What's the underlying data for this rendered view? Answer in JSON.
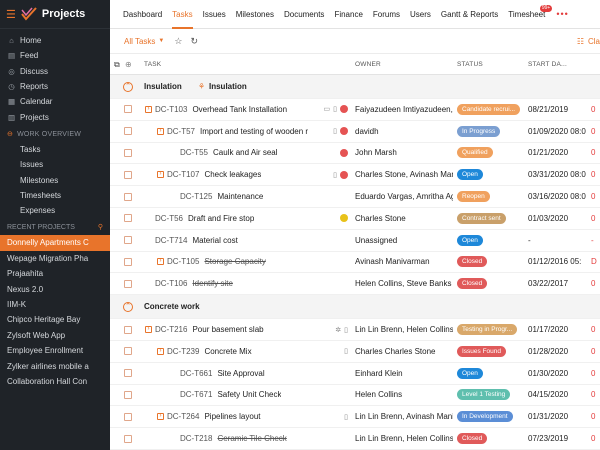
{
  "app": {
    "title": "Projects"
  },
  "sidebar": {
    "items": [
      {
        "label": "Home",
        "icon": "home-icon",
        "glyph": "⌂"
      },
      {
        "label": "Feed",
        "icon": "feed-icon",
        "glyph": "▤"
      },
      {
        "label": "Discuss",
        "icon": "discuss-icon",
        "glyph": "◎"
      },
      {
        "label": "Reports",
        "icon": "reports-icon",
        "glyph": "◷"
      },
      {
        "label": "Calendar",
        "icon": "calendar-icon",
        "glyph": "▦"
      },
      {
        "label": "Projects",
        "icon": "projects-icon",
        "glyph": "▥"
      }
    ],
    "work_overview": {
      "label": "WORK OVERVIEW",
      "items": [
        "Tasks",
        "Issues",
        "Milestones",
        "Timesheets",
        "Expenses"
      ]
    },
    "recent_projects": {
      "label": "RECENT PROJECTS",
      "items": [
        {
          "label": "Donnelly Apartments C",
          "active": true
        },
        {
          "label": "Wepage Migration Pha",
          "active": false
        },
        {
          "label": "Prajaahita",
          "active": false
        },
        {
          "label": "Nexus 2.0",
          "active": false
        },
        {
          "label": "IIM-K",
          "active": false
        },
        {
          "label": "Chipco Heritage Bay",
          "active": false
        },
        {
          "label": "Zylsoft Web App",
          "active": false
        },
        {
          "label": "Employee Enrollment",
          "active": false
        },
        {
          "label": "Zylker airlines mobile a",
          "active": false
        },
        {
          "label": "Collaboration Hall Con",
          "active": false
        }
      ]
    }
  },
  "topnav": {
    "tabs": [
      "Dashboard",
      "Tasks",
      "Issues",
      "Milestones",
      "Documents",
      "Finance",
      "Forums",
      "Users",
      "Gantt & Reports",
      "Timesheet"
    ],
    "active": "Tasks",
    "timesheet_badge": "99+",
    "more": "•••"
  },
  "toolbar": {
    "view": "All Tasks",
    "classic": "Cla"
  },
  "table": {
    "headers": {
      "task": "TASK",
      "owner": "OWNER",
      "status": "STATUS",
      "start": "START DA..."
    }
  },
  "colors": {
    "accent": "#e8742b",
    "candidate": "#f0a15e",
    "in_progress": "#7b9fd1",
    "qualified": "#f0a15e",
    "open": "#1e88d9",
    "reopen": "#f0a15e",
    "contract_sent": "#c9a06a",
    "closed": "#e05a5a",
    "testing": "#d9a86a",
    "issues_found": "#e05a5a",
    "level1": "#5fbfae",
    "in_development": "#5b8ed6"
  },
  "groups": [
    {
      "name": "Insulation",
      "sub_name": "Insulation",
      "rows": [
        {
          "indent": 0,
          "has_sub": true,
          "id": "DC-T103",
          "name": "Overhead Tank Installation",
          "icons": [
            "chat-icon",
            "doc-icon",
            "red-dot"
          ],
          "owner": "Faiyazudeen Imtiyazudeen, H",
          "status": "Candidate recrui...",
          "status_color": "#f0a15e",
          "start": "08/21/2019",
          "due": "0",
          "done": false
        },
        {
          "indent": 1,
          "has_sub": true,
          "id": "DC-T57",
          "name": "Import and testing of wooden r",
          "icons": [
            "doc-icon",
            "red-dot"
          ],
          "owner": "davidh",
          "status": "In Progress",
          "status_color": "#7b9fd1",
          "start": "01/09/2020 08:0",
          "due": "0",
          "done": false
        },
        {
          "indent": 2,
          "has_sub": false,
          "id": "DC-T55",
          "name": "Caulk and Air seal",
          "icons": [
            "red-dot"
          ],
          "owner": "John Marsh",
          "status": "Qualified",
          "status_color": "#f0a15e",
          "start": "01/21/2020",
          "due": "0",
          "done": false
        },
        {
          "indent": 1,
          "has_sub": true,
          "id": "DC-T107",
          "name": "Check leakages",
          "icons": [
            "doc-icon",
            "red-dot"
          ],
          "owner": "Charles Stone, Avinash Maniv",
          "status": "Open",
          "status_color": "#1e88d9",
          "start": "03/31/2020 08:0",
          "due": "0",
          "done": false
        },
        {
          "indent": 2,
          "has_sub": false,
          "id": "DC-T125",
          "name": "Maintenance",
          "icons": [],
          "owner": "Eduardo Vargas, Amritha Agra",
          "status": "Reopen",
          "status_color": "#f0a15e",
          "start": "03/16/2020 08:0",
          "due": "0",
          "done": false
        },
        {
          "indent": 0,
          "has_sub": false,
          "id": "DC-T56",
          "name": "Draft and Fire stop",
          "icons": [
            "yellow-dot"
          ],
          "owner": "Charles Stone",
          "status": "Contract sent",
          "status_color": "#c9a06a",
          "start": "01/03/2020",
          "due": "0",
          "done": false
        },
        {
          "indent": 0,
          "has_sub": false,
          "id": "DC-T714",
          "name": "Material cost",
          "icons": [],
          "owner": "Unassigned",
          "status": "Open",
          "status_color": "#1e88d9",
          "start": "-",
          "due": "-",
          "done": false
        },
        {
          "indent": 1,
          "has_sub": true,
          "id": "DC-T105",
          "name": "Storage Capacity",
          "icons": [],
          "owner": "Avinash Manivarman",
          "status": "Closed",
          "status_color": "#e05a5a",
          "start": "01/12/2016 05:",
          "due": "D",
          "done": true
        },
        {
          "indent": 0,
          "has_sub": false,
          "id": "DC-T106",
          "name": "Identify site",
          "icons": [],
          "owner": "Helen Collins, Steve Banks",
          "status": "Closed",
          "status_color": "#e05a5a",
          "start": "03/22/2017",
          "due": "0",
          "done": true
        }
      ]
    },
    {
      "name": "Concrete work",
      "rows": [
        {
          "indent": 0,
          "has_sub": true,
          "id": "DC-T216",
          "name": "Pour basement slab",
          "icons": [
            "bug-icon",
            "doc-icon"
          ],
          "owner": "Lin Lin Brenn, Helen Collins",
          "status": "Testing in Progr...",
          "status_color": "#d9a86a",
          "start": "01/17/2020",
          "due": "0",
          "done": false
        },
        {
          "indent": 1,
          "has_sub": true,
          "id": "DC-T239",
          "name": "Concrete Mix",
          "icons": [
            "doc-icon"
          ],
          "owner": "Charles Charles Stone",
          "status": "Issues Found",
          "status_color": "#e05a5a",
          "start": "01/28/2020",
          "due": "0",
          "done": false
        },
        {
          "indent": 2,
          "has_sub": false,
          "id": "DC-T661",
          "name": "Site Approval",
          "icons": [],
          "owner": "Einhard Klein",
          "status": "Open",
          "status_color": "#1e88d9",
          "start": "01/30/2020",
          "due": "0",
          "done": false
        },
        {
          "indent": 2,
          "has_sub": false,
          "id": "DC-T671",
          "name": "Safety Unit Check",
          "icons": [],
          "owner": "Helen Collins",
          "status": "Level 1 Testing",
          "status_color": "#5fbfae",
          "start": "04/15/2020",
          "due": "0",
          "done": false
        },
        {
          "indent": 1,
          "has_sub": true,
          "id": "DC-T264",
          "name": "Pipelines layout",
          "icons": [
            "doc-icon"
          ],
          "owner": "Lin Lin Brenn, Avinash Maniv",
          "status": "In Development",
          "status_color": "#5b8ed6",
          "start": "01/31/2020",
          "due": "0",
          "done": false
        },
        {
          "indent": 2,
          "has_sub": false,
          "id": "DC-T218",
          "name": "Ceramic Tile Check",
          "icons": [],
          "owner": "Lin Lin Brenn, Helen Collins",
          "status": "Closed",
          "status_color": "#e05a5a",
          "start": "07/23/2019",
          "due": "0",
          "done": true
        }
      ]
    }
  ]
}
